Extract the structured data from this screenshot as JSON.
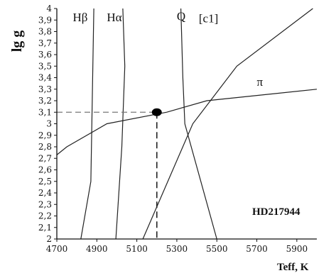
{
  "chart_data": {
    "type": "line",
    "xlabel": "Teff, K",
    "ylabel": "lg g",
    "xlim": [
      4700,
      6000
    ],
    "ylim": [
      2.0,
      4.0
    ],
    "x_ticks": [
      4700,
      4900,
      5100,
      5300,
      5500,
      5700,
      5900
    ],
    "y_ticks": [
      "2",
      "2,1",
      "2,2",
      "2,3",
      "2,4",
      "2,5",
      "2,6",
      "2,7",
      "2,8",
      "2,9",
      "3",
      "3,1",
      "3,2",
      "3,3",
      "3,4",
      "3,5",
      "3,6",
      "3,7",
      "3,8",
      "3,9",
      "4"
    ],
    "series": [
      {
        "name": "Hβ",
        "points": [
          [
            4820,
            2.0
          ],
          [
            4870,
            2.5
          ],
          [
            4885,
            4.0
          ]
        ]
      },
      {
        "name": "Hα",
        "points": [
          [
            4995,
            2.0
          ],
          [
            5025,
            2.8
          ],
          [
            5040,
            3.5
          ],
          [
            5030,
            4.0
          ]
        ]
      },
      {
        "name": "Q",
        "points": [
          [
            5500,
            2.0
          ],
          [
            5340,
            3.0
          ],
          [
            5330,
            3.4
          ],
          [
            5320,
            4.0
          ]
        ]
      },
      {
        "name": "[c1]",
        "points": [
          [
            5130,
            2.0
          ],
          [
            5380,
            3.0
          ],
          [
            5600,
            3.5
          ],
          [
            5980,
            4.0
          ]
        ]
      },
      {
        "name": "π",
        "points": [
          [
            4700,
            2.73
          ],
          [
            4750,
            2.8
          ],
          [
            4950,
            3.0
          ],
          [
            5250,
            3.1
          ],
          [
            5450,
            3.2
          ],
          [
            6000,
            3.3
          ]
        ]
      }
    ],
    "marker": {
      "x": 5200,
      "y": 3.1
    },
    "annotation": "HD217944"
  }
}
